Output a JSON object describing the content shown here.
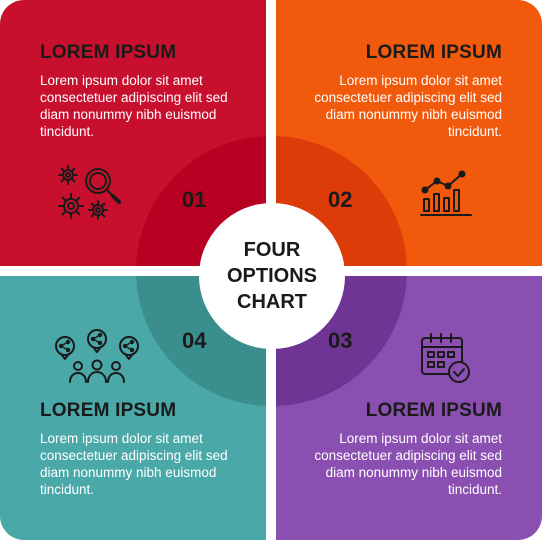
{
  "center": {
    "title": "FOUR OPTIONS CHART"
  },
  "colors": {
    "q1": "#c8102e",
    "q1_ring": "#b80022",
    "q2": "#f15a0c",
    "q2_ring": "#dd3c08",
    "q3": "#8a4fb0",
    "q3_ring": "#6f3494",
    "q4": "#4aa9a8",
    "q4_ring": "#3a8f8e"
  },
  "options": [
    {
      "number": "01",
      "title": "LOREM IPSUM",
      "text": "Lorem ipsum dolor sit amet consectetuer adipiscing elit sed diam nonummy nibh euismod tincidunt.",
      "icon": "gears-magnifier-icon"
    },
    {
      "number": "02",
      "title": "LOREM IPSUM",
      "text": "Lorem ipsum dolor sit amet consectetuer adipiscing elit sed diam nonummy nibh euismod tincidunt.",
      "icon": "bar-chart-trend-icon"
    },
    {
      "number": "03",
      "title": "LOREM IPSUM",
      "text": "Lorem ipsum dolor sit amet consectetuer adipiscing elit sed diam nonummy nibh euismod tincidunt.",
      "icon": "calendar-check-icon"
    },
    {
      "number": "04",
      "title": "LOREM IPSUM",
      "text": "Lorem ipsum dolor sit amet consectetuer adipiscing elit sed diam nonummy nibh euismod tincidunt.",
      "icon": "team-share-icon"
    }
  ]
}
